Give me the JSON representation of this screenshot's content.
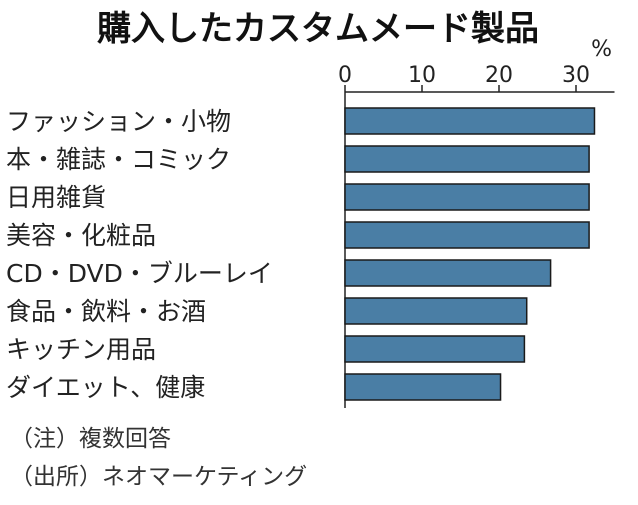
{
  "chart_data": {
    "type": "bar",
    "orientation": "horizontal",
    "title": "購入したカスタムメード製品",
    "unit": "%",
    "xlim": [
      0,
      35
    ],
    "ticks": [
      0,
      10,
      20,
      30
    ],
    "grid": false,
    "categories": [
      "ファッション・小物",
      "本・雑誌・コミック",
      "日用雑貨",
      "美容・化粧品",
      "CD・DVD・ブルーレイ",
      "食品・飲料・お酒",
      "キッチン用品",
      "ダイエット、健康"
    ],
    "values": [
      32.4,
      31.7,
      31.7,
      31.7,
      26.7,
      23.6,
      23.3,
      20.2
    ],
    "colors": {
      "bar": "#4a7ea5",
      "outline": "#1a1a1a"
    }
  },
  "notes": [
    "（注）複数回答",
    "（出所）ネオマーケティング"
  ]
}
